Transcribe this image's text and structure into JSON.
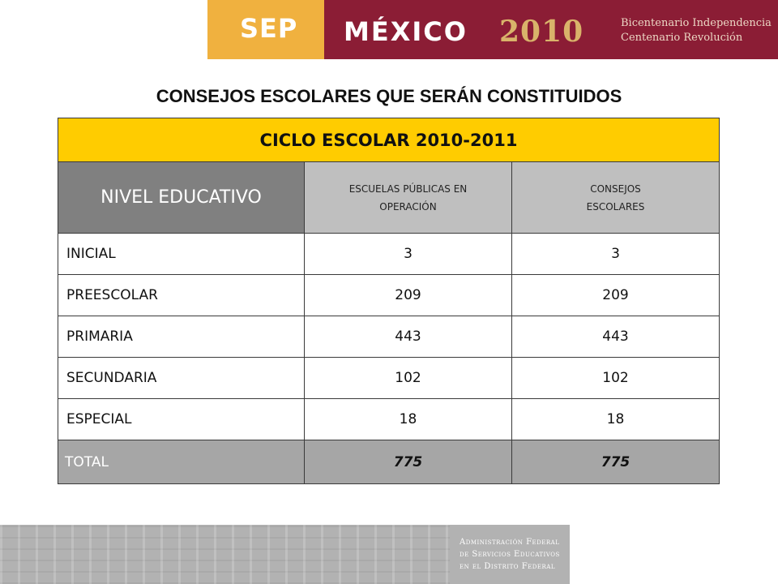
{
  "header": {
    "sep": "SEP",
    "mexico": "MÉXICO",
    "year": "2010",
    "bicentenario_line1": "Bicentenario Independencia",
    "bicentenario_line2": "Centenario Revolución",
    "colors": {
      "sep_bg": "#f0b13f",
      "mexico_bg": "#8b1d35"
    }
  },
  "title": "CONSEJOS  ESCOLARES QUE SERÁN CONSTITUIDOS",
  "table": {
    "ciclo": "CICLO ESCOLAR 2010-2011",
    "headers": {
      "nivel": "NIVEL EDUCATIVO",
      "escuelas_line1": "ESCUELAS PÚBLICAS EN",
      "escuelas_line2": "OPERACIÓN",
      "consejos_line1": "CONSEJOS",
      "consejos_line2": "ESCOLARES"
    },
    "rows": [
      {
        "nivel": "INICIAL",
        "escuelas": "3",
        "consejos": "3"
      },
      {
        "nivel": "PREESCOLAR",
        "escuelas": "209",
        "consejos": "209"
      },
      {
        "nivel": "PRIMARIA",
        "escuelas": "443",
        "consejos": "443"
      },
      {
        "nivel": "SECUNDARIA",
        "escuelas": "102",
        "consejos": "102"
      },
      {
        "nivel": "ESPECIAL",
        "escuelas": "18",
        "consejos": "18"
      }
    ],
    "total": {
      "nivel": "TOTAL",
      "escuelas": "775",
      "consejos": "775"
    }
  },
  "footer": {
    "line1": "Administración Federal",
    "line2": "de Servicios Educativos",
    "line3": "en el Distrito Federal"
  }
}
